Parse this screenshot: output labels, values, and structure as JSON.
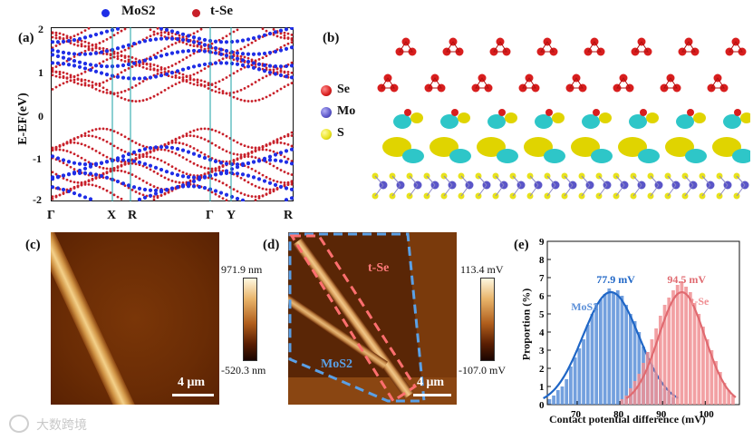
{
  "legend": {
    "mos2": "MoS2",
    "tse": "t-Se"
  },
  "panel_labels": {
    "a": "(a)",
    "b": "(b)",
    "c": "(c)",
    "d": "(d)",
    "e": "(e)"
  },
  "panel_a": {
    "ylabel": "E-EF(eV)",
    "yticks": [
      "2",
      "1",
      "0",
      "-1",
      "-2"
    ],
    "kpoints": [
      "Γ",
      "X",
      "R",
      "Γ",
      "Y",
      "R"
    ],
    "colors": {
      "mos2": "#1f2ee6",
      "tse": "#c8202a",
      "lines": "#1aa0a6"
    }
  },
  "panel_b": {
    "legend": [
      {
        "label": "Se",
        "color": "#d81e1e"
      },
      {
        "label": "Mo",
        "color": "#5a55c8"
      },
      {
        "label": "S",
        "color": "#e8e21c"
      }
    ]
  },
  "panel_c": {
    "cb_max": "971.9 nm",
    "cb_min": "-520.3 nm",
    "scale": "4 μm"
  },
  "panel_d": {
    "cb_max": "113.4 mV",
    "cb_min": "-107.0 mV",
    "scale": "4 μm",
    "tse_label": "t-Se",
    "mos2_label": "MoS2"
  },
  "chart_data": {
    "type": "bar",
    "xlabel": "Contact potential difference (mV)",
    "ylabel": "Proportion (%)",
    "xlim": [
      63,
      108
    ],
    "ylim": [
      0,
      9
    ],
    "xticks": [
      70,
      80,
      90,
      100
    ],
    "yticks": [
      0,
      1,
      2,
      3,
      4,
      5,
      6,
      7,
      8,
      9
    ],
    "series": [
      {
        "name": "MoS2",
        "color": "#5b8fd8",
        "fit_color": "#1f66c6",
        "peak_label": "77.9 mV",
        "mean": 77.9,
        "sigma": 6.6,
        "amp": 6.2,
        "x": [
          63.5,
          64.5,
          65.5,
          66.5,
          67.5,
          68.5,
          69.5,
          70.5,
          71.5,
          72.5,
          73.5,
          74.5,
          75.5,
          76.5,
          77.5,
          78.5,
          79.5,
          80.5,
          81.5,
          82.5,
          83.5,
          84.5,
          85.5,
          86.5,
          87.5,
          88.5,
          89.5,
          90.5,
          91.5,
          92.5
        ],
        "values": [
          0.3,
          0.5,
          0.8,
          1.0,
          1.4,
          2.1,
          2.6,
          3.1,
          3.6,
          4.4,
          5.0,
          5.6,
          5.8,
          6.1,
          6.4,
          6.2,
          6.3,
          6.0,
          5.5,
          5.0,
          4.6,
          4.0,
          3.2,
          2.9,
          2.2,
          1.7,
          1.3,
          0.9,
          0.7,
          0.4
        ]
      },
      {
        "name": "t-Se",
        "color": "#f08f93",
        "fit_color": "#e06a70",
        "peak_label": "94.5 mV",
        "mean": 94.5,
        "sigma": 5.4,
        "amp": 6.2,
        "x": [
          80.5,
          81.5,
          82.5,
          83.5,
          84.5,
          85.5,
          86.5,
          87.5,
          88.5,
          89.5,
          90.5,
          91.5,
          92.5,
          93.5,
          94.5,
          95.5,
          96.5,
          97.5,
          98.5,
          99.5,
          100.5,
          101.5,
          102.5,
          103.5,
          104.5,
          105.5,
          106.5
        ],
        "values": [
          0.3,
          0.5,
          0.9,
          1.3,
          1.7,
          2.3,
          2.9,
          3.6,
          4.2,
          4.9,
          5.5,
          5.9,
          6.3,
          6.6,
          6.8,
          6.5,
          6.2,
          5.6,
          5.0,
          4.3,
          3.6,
          3.0,
          2.4,
          1.8,
          1.2,
          0.8,
          0.5
        ]
      }
    ]
  },
  "watermark": "大数跨境"
}
